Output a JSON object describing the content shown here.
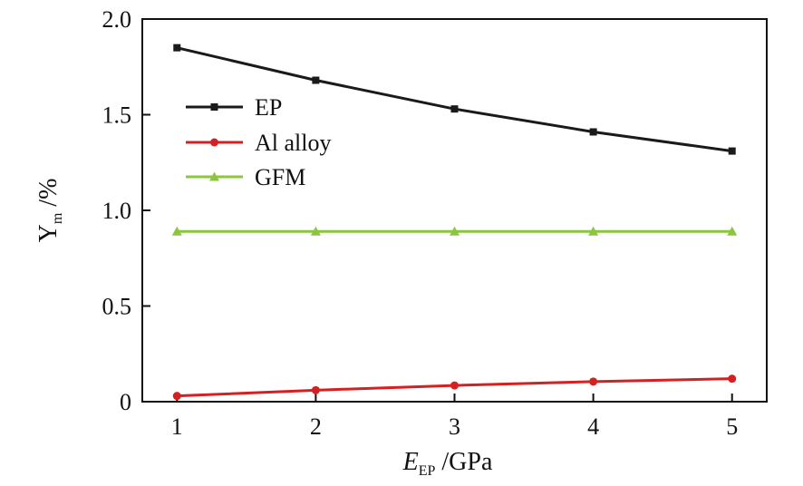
{
  "chart_data": {
    "type": "line",
    "x": [
      1,
      2,
      3,
      4,
      5
    ],
    "xticks": [
      "1",
      "2",
      "3",
      "4",
      "5"
    ],
    "yticks": [
      "0",
      "0.5",
      "1.0",
      "1.5",
      "2.0"
    ],
    "xlim": [
      0.75,
      5.25
    ],
    "ylim": [
      0,
      2.0
    ],
    "xlabel": {
      "main": "E",
      "sub": "EP",
      "rest": " /GPa"
    },
    "ylabel": {
      "main": "Y",
      "sub": "m",
      "rest": " /%"
    },
    "grid": false,
    "legend_position": "top-left",
    "series": [
      {
        "name": "EP",
        "color": "#1a1a1a",
        "marker": "square",
        "values": [
          1.85,
          1.68,
          1.53,
          1.41,
          1.31
        ]
      },
      {
        "name": "Al alloy",
        "color": "#d42020",
        "marker": "circle",
        "values": [
          0.03,
          0.06,
          0.085,
          0.105,
          0.12
        ]
      },
      {
        "name": "GFM",
        "color": "#8cc63f",
        "marker": "triangle",
        "values": [
          0.89,
          0.89,
          0.89,
          0.89,
          0.89
        ]
      }
    ]
  }
}
